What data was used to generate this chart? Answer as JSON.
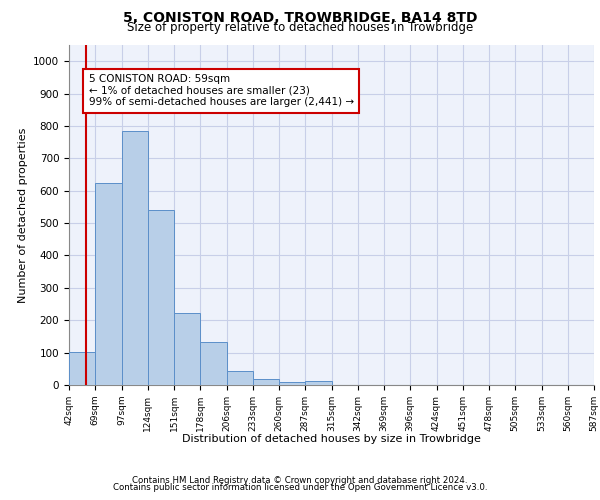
{
  "title": "5, CONISTON ROAD, TROWBRIDGE, BA14 8TD",
  "subtitle": "Size of property relative to detached houses in Trowbridge",
  "xlabel": "Distribution of detached houses by size in Trowbridge",
  "ylabel": "Number of detached properties",
  "bar_values": [
    103,
    625,
    785,
    540,
    222,
    132,
    44,
    17,
    10,
    12,
    0,
    0,
    0,
    0,
    0,
    0,
    0,
    0,
    0,
    0
  ],
  "categories": [
    "42sqm",
    "69sqm",
    "97sqm",
    "124sqm",
    "151sqm",
    "178sqm",
    "206sqm",
    "233sqm",
    "260sqm",
    "287sqm",
    "315sqm",
    "342sqm",
    "369sqm",
    "396sqm",
    "424sqm",
    "451sqm",
    "478sqm",
    "505sqm",
    "533sqm",
    "560sqm",
    "587sqm"
  ],
  "bar_color": "#b8cfe8",
  "bar_edge_color": "#5b8fc9",
  "property_line_color": "#cc0000",
  "annotation_text": "5 CONISTON ROAD: 59sqm\n← 1% of detached houses are smaller (23)\n99% of semi-detached houses are larger (2,441) →",
  "annotation_box_color": "#cc0000",
  "ylim": [
    0,
    1050
  ],
  "yticks": [
    0,
    100,
    200,
    300,
    400,
    500,
    600,
    700,
    800,
    900,
    1000
  ],
  "footer_line1": "Contains HM Land Registry data © Crown copyright and database right 2024.",
  "footer_line2": "Contains public sector information licensed under the Open Government Licence v3.0.",
  "background_color": "#eef2fb",
  "grid_color": "#c8cfe8"
}
